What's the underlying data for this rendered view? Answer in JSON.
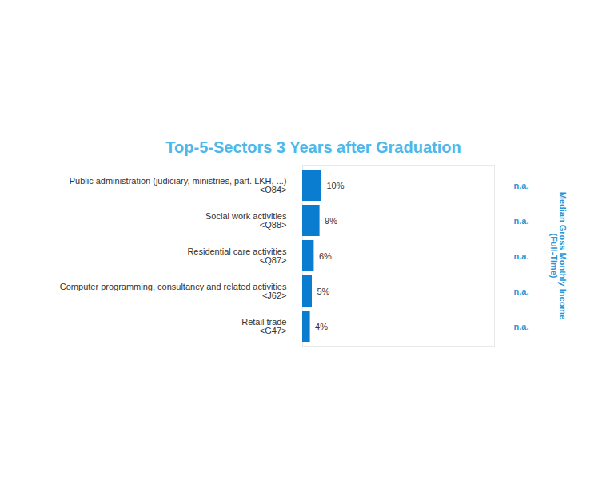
{
  "chart_data": {
    "type": "bar",
    "orientation": "horizontal",
    "title": "Top-5-Sectors 3 Years after Graduation",
    "categories": [
      "Public administration (judiciary, ministries, part. LKH, ...)\n<O84>",
      "Social work activities\n<Q88>",
      "Residential care activities\n<Q87>",
      "Computer programming, consultancy and related activities\n<J62>",
      "Retail trade\n<G47>"
    ],
    "values": [
      10,
      9,
      6,
      5,
      4
    ],
    "value_labels": [
      "10%",
      "9%",
      "6%",
      "5%",
      "4%"
    ],
    "data_labels": true,
    "color": "#0b7dd1",
    "xlim": [
      0,
      100
    ],
    "tick_labels": "y",
    "income_label": "Median Gross Monthly Income\n(Full-Time)",
    "income_values": [
      "n.a.",
      "n.a.",
      "n.a.",
      "n.a.",
      "n.a."
    ]
  }
}
